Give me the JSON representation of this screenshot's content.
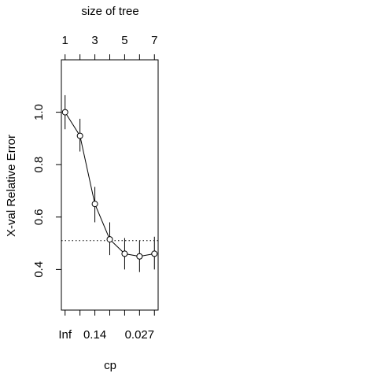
{
  "chart_data": {
    "type": "scatter",
    "title": "",
    "xlabel": "cp",
    "ylabel": "X-val Relative Error",
    "top_axis_label": "size of tree",
    "top_ticks": [
      "1",
      "3",
      "5",
      "7"
    ],
    "bottom_ticks": [
      "Inf",
      "0.14",
      "0.027"
    ],
    "y_ticks": [
      "0.4",
      "0.6",
      "0.8",
      "1.0"
    ],
    "ylim": [
      0.245,
      1.2
    ],
    "tree_sizes": [
      1,
      2,
      3,
      4,
      5,
      6,
      7
    ],
    "series": [
      {
        "x": [
          1,
          2,
          3,
          4,
          5,
          6,
          7
        ],
        "values": [
          1.0,
          0.91,
          0.65,
          0.515,
          0.46,
          0.45,
          0.46
        ],
        "error_low": [
          0.935,
          0.85,
          0.58,
          0.455,
          0.4,
          0.39,
          0.4
        ],
        "error_high": [
          1.065,
          0.975,
          0.715,
          0.58,
          0.52,
          0.51,
          0.525
        ]
      }
    ],
    "reference_line": 0.51,
    "grid": false,
    "legend": "none"
  }
}
